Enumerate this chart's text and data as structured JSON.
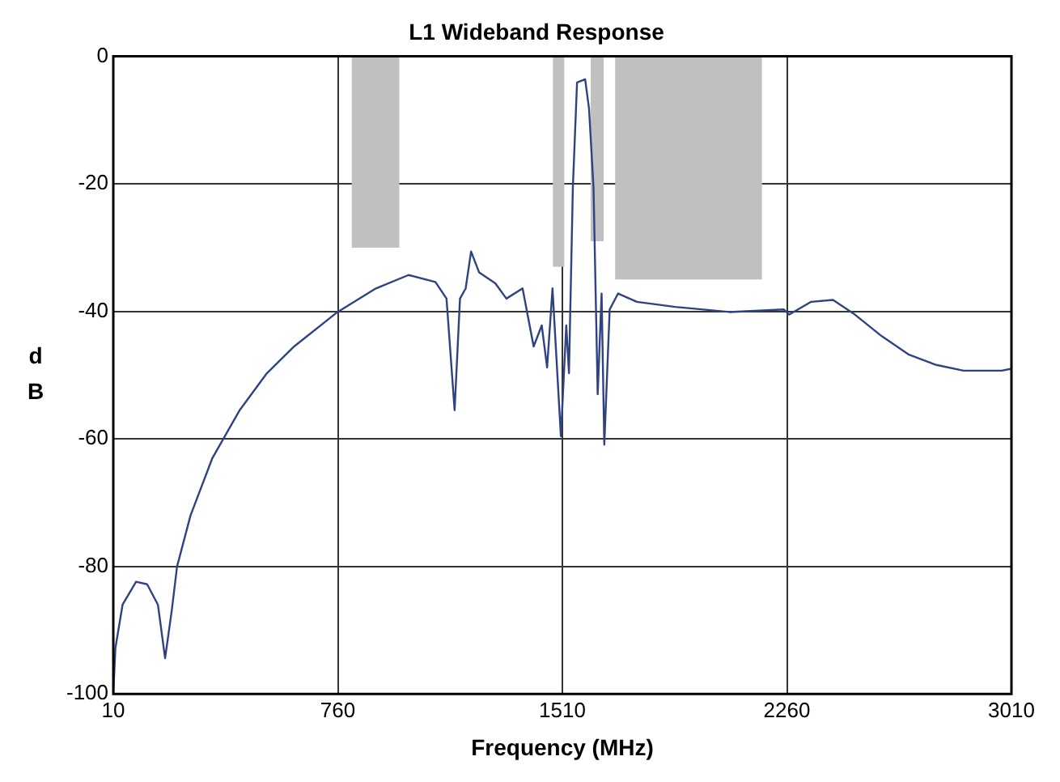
{
  "chart_data": {
    "type": "line",
    "title": "L1 Wideband Response",
    "xlabel": "Frequency (MHz)",
    "ylabel": "dB",
    "xlim": [
      10,
      3010
    ],
    "xticks": [
      10,
      760,
      1510,
      2260,
      3010
    ],
    "ylim": [
      -100,
      0
    ],
    "yticks": [
      -100,
      -80,
      -60,
      -40,
      -20,
      0
    ],
    "grid": true,
    "legend": false,
    "marker": "none",
    "line_style": "solid",
    "series": [
      {
        "type": "area",
        "color": "#c0c0c0",
        "x": [
          806,
          966
        ],
        "values": [
          -30,
          -30
        ]
      },
      {
        "type": "area",
        "color": "#c0c0c0",
        "x": [
          1478,
          1517
        ],
        "values": [
          -33,
          -33
        ]
      },
      {
        "type": "area",
        "color": "#c0c0c0",
        "x": [
          1604,
          1648
        ],
        "values": [
          -29,
          -29
        ]
      },
      {
        "type": "area",
        "color": "#c0c0c0",
        "x": [
          1686,
          2177
        ],
        "values": [
          -35,
          -35
        ]
      },
      {
        "color": "#2f4282",
        "x": [
          10,
          17,
          41,
          86,
          123,
          159,
          183,
          205,
          223,
          268,
          341,
          432,
          523,
          614,
          759,
          887,
          996,
          1086,
          1123,
          1150,
          1168,
          1187,
          1205,
          1232,
          1286,
          1323,
          1377,
          1414,
          1441,
          1459,
          1477,
          1505,
          1523,
          1532,
          1545,
          1559,
          1586,
          1599,
          1614,
          1628,
          1641,
          1650,
          1668,
          1696,
          1759,
          1887,
          2068,
          2250,
          2268,
          2341,
          2414,
          2487,
          2577,
          2668,
          2759,
          2850,
          2977,
          3010
        ],
        "values": [
          -99.8,
          -92.8,
          -86,
          -82.4,
          -82.8,
          -86,
          -94.4,
          -87,
          -80,
          -72,
          -63,
          -55.5,
          -49.7,
          -45.5,
          -40.1,
          -36.4,
          -34.3,
          -35.4,
          -38,
          -55.5,
          -38,
          -36.4,
          -30.6,
          -33.9,
          -35.6,
          -38,
          -36.4,
          -45.5,
          -42.2,
          -48.8,
          -36.4,
          -59.6,
          -42.2,
          -49.7,
          -20.6,
          -4.1,
          -3.6,
          -8.2,
          -20.6,
          -53,
          -37.2,
          -60.9,
          -39.7,
          -37.2,
          -38.5,
          -39.3,
          -40.1,
          -39.7,
          -40.5,
          -38.5,
          -38.2,
          -40.5,
          -43.9,
          -46.8,
          -48.4,
          -49.3,
          -49.3,
          -49
        ]
      }
    ]
  }
}
